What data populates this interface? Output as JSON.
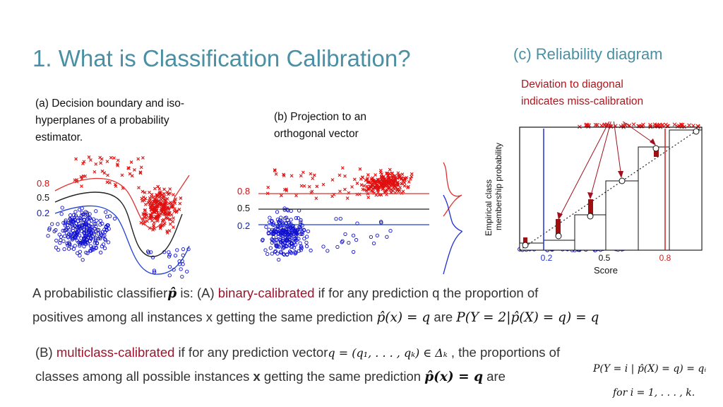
{
  "title": "1. What is Classification Calibration?",
  "panel_c": {
    "subtitle": "(c) Reliability diagram",
    "note": "Deviation to diagonal indicates miss-calibration",
    "ylabel_line1": "Empirical class",
    "ylabel_line2": "membership probability",
    "xlabel": "Score",
    "tick_02": "0.2",
    "tick_05": "0.5",
    "tick_08": "0.8"
  },
  "panel_a": {
    "caption": "(a) Decision boundary and iso-hyperplanes of a probability estimator.",
    "label_08": "0.8",
    "label_05": "0.5",
    "label_02": "0.2"
  },
  "panel_b": {
    "caption": "(b) Projection to an orthogonal vector",
    "label_08": "0.8",
    "label_05": "0.5",
    "label_02": "0.2"
  },
  "body": {
    "line1_a": "A probabilistic classifier",
    "line1_sym": "p̂",
    "line1_b": " is: (A) ",
    "line1_term": "binary-calibrated",
    "line1_c": " if for any prediction q the proportion of",
    "line2_a": "positives among all instances  x getting the same prediction ",
    "line2_math1": "p̂(x) = q",
    "line2_are": " are ",
    "line2_math2": "P(Y = 2|p̂(X) = q) = q",
    "line3_a": "(B) ",
    "line3_term": "multiclass-calibrated",
    "line3_b": " if for any prediction vector",
    "line3_math": "q = (q₁, . . . , qₖ) ∈ Δₖ",
    "line3_c": " , the proportions of",
    "line4_a": "classes among all possible instances ",
    "line4_x": "x",
    "line4_b": " getting the same prediction ",
    "line4_math": "p̂(x) = q",
    "line4_are": "  are",
    "eq_right1": "P(Y = i | p̂(X) = q) = qᵢ",
    "eq_right2": "for  i = 1, . . . , k."
  },
  "colors": {
    "title": "#4a8fa3",
    "accent_red": "#a0122a",
    "class_red": "#e01010",
    "class_blue": "#1010d0"
  }
}
